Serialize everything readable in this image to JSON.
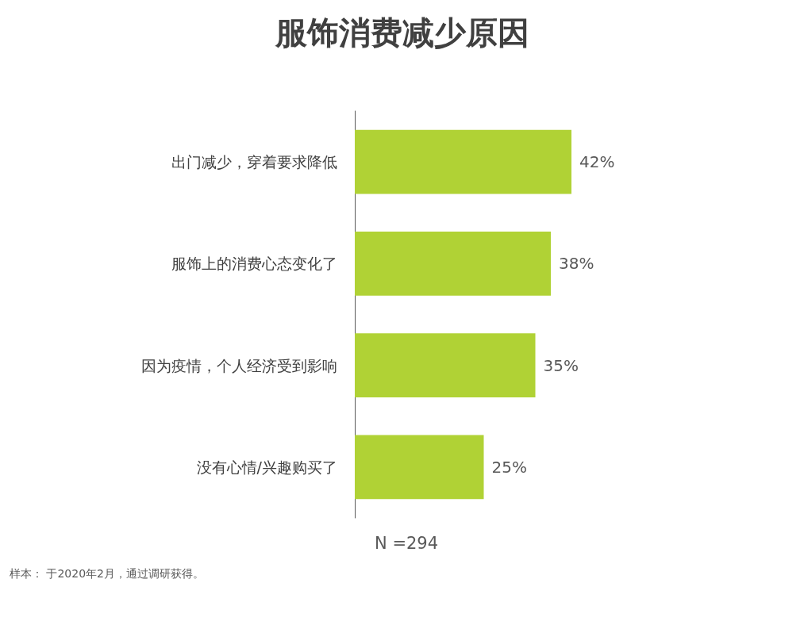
{
  "chart_data": {
    "type": "bar",
    "orientation": "horizontal",
    "title": "服饰消费减少原因",
    "categories": [
      "出门减少，穿着要求降低",
      "服饰上的消费心态变化了",
      "因为疫情，个人经济受到影响",
      "没有心情/兴趣购买了"
    ],
    "values": [
      42,
      38,
      35,
      25
    ],
    "color": "#b0d235",
    "value_labels": [
      "42%",
      "38%",
      "35%",
      "25%"
    ],
    "annotations": [
      "N =294",
      "样本： 于2020年2月，通过调研获得。"
    ]
  }
}
